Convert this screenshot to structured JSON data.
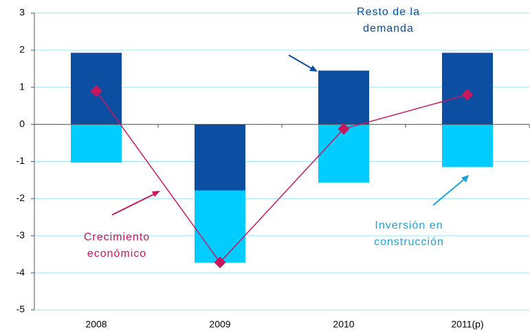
{
  "chart_data": {
    "type": "bar",
    "categories": [
      "2008",
      "2009",
      "2010",
      "2011(p)"
    ],
    "series": [
      {
        "name": "Resto de la demanda",
        "color": "#0b4ea2",
        "values": [
          1.93,
          -1.78,
          1.45,
          1.93
        ]
      },
      {
        "name": "Inversión en construcción",
        "color": "#00ccff",
        "values": [
          -1.03,
          -1.95,
          -1.57,
          -1.15
        ]
      },
      {
        "name": "Crecimiento económico",
        "color": "#c8175d",
        "type": "line",
        "values": [
          0.9,
          -3.72,
          -0.12,
          0.8
        ]
      }
    ],
    "ylim": [
      -5,
      3
    ],
    "yticks": [
      -5,
      -4,
      -3,
      -2,
      -1,
      0,
      1,
      2,
      3
    ],
    "grid": true
  }
}
